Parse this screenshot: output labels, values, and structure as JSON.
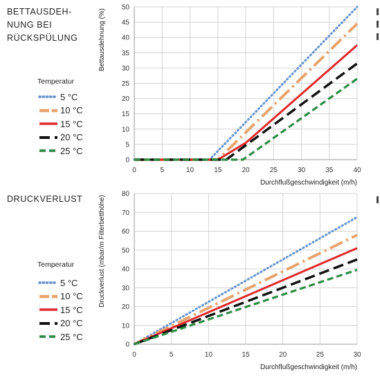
{
  "sections": [
    {
      "title": "BETTAUSDEH-\nNUNG BEI\nRÜCKSPÜLUNG"
    },
    {
      "title": "DRUCKVERLUST"
    }
  ],
  "legend": {
    "title": "Temperatur",
    "items": [
      {
        "label": "5 °C",
        "color": "#6a96cf",
        "style": "dotted"
      },
      {
        "label": "10 °C",
        "color": "#e8a46e",
        "style": "dashdot"
      },
      {
        "label": "15 °C",
        "color": "#e0282b",
        "style": "solid"
      },
      {
        "label": "20 °C",
        "color": "#111111",
        "style": "dashed"
      },
      {
        "label": "25 °C",
        "color": "#2e8b45",
        "style": "dashed-short"
      }
    ]
  },
  "chart_data": [
    {
      "type": "line",
      "title": "",
      "xlabel": "Durchflußgeschwindigkeit (m/h)",
      "ylabel": "Bettausdehnung (%)",
      "xlim": [
        0,
        40
      ],
      "ylim": [
        0,
        50
      ],
      "xticks": [
        0,
        5,
        10,
        15,
        20,
        25,
        30,
        35,
        40
      ],
      "yticks": [
        0,
        5,
        10,
        15,
        20,
        25,
        30,
        35,
        40,
        45,
        50
      ],
      "grid": true,
      "series": [
        {
          "name": "5 °C",
          "x": [
            0,
            13.5,
            40
          ],
          "y": [
            0,
            0,
            50
          ]
        },
        {
          "name": "10 °C",
          "x": [
            0,
            15,
            40
          ],
          "y": [
            0,
            0,
            44.5
          ]
        },
        {
          "name": "15 °C",
          "x": [
            0,
            15,
            20,
            40
          ],
          "y": [
            0,
            0,
            5.5,
            37.5
          ]
        },
        {
          "name": "20 °C",
          "x": [
            0,
            16.5,
            40
          ],
          "y": [
            0,
            0,
            31.5
          ]
        },
        {
          "name": "25 °C",
          "x": [
            0,
            19.5,
            40
          ],
          "y": [
            0,
            0,
            26.5
          ]
        }
      ]
    },
    {
      "type": "line",
      "title": "",
      "xlabel": "Durchflußgeschwindigkeit (m/h)",
      "ylabel": "Druckverlust  (mbar/m Filterbetthöhe)",
      "xlim": [
        0,
        30
      ],
      "ylim": [
        0,
        80
      ],
      "xticks": [
        0,
        5,
        10,
        15,
        20,
        25,
        30
      ],
      "yticks": [
        0,
        10,
        20,
        30,
        40,
        50,
        60,
        70,
        80
      ],
      "grid": true,
      "series": [
        {
          "name": "5 °C",
          "x": [
            0,
            30
          ],
          "y": [
            0,
            67.5
          ]
        },
        {
          "name": "10 °C",
          "x": [
            0,
            30
          ],
          "y": [
            0,
            58
          ]
        },
        {
          "name": "15 °C",
          "x": [
            0,
            30
          ],
          "y": [
            0,
            51
          ]
        },
        {
          "name": "20 °C",
          "x": [
            0,
            30
          ],
          "y": [
            0,
            45
          ]
        },
        {
          "name": "25 °C",
          "x": [
            0,
            30
          ],
          "y": [
            0,
            39.5
          ]
        }
      ]
    }
  ]
}
